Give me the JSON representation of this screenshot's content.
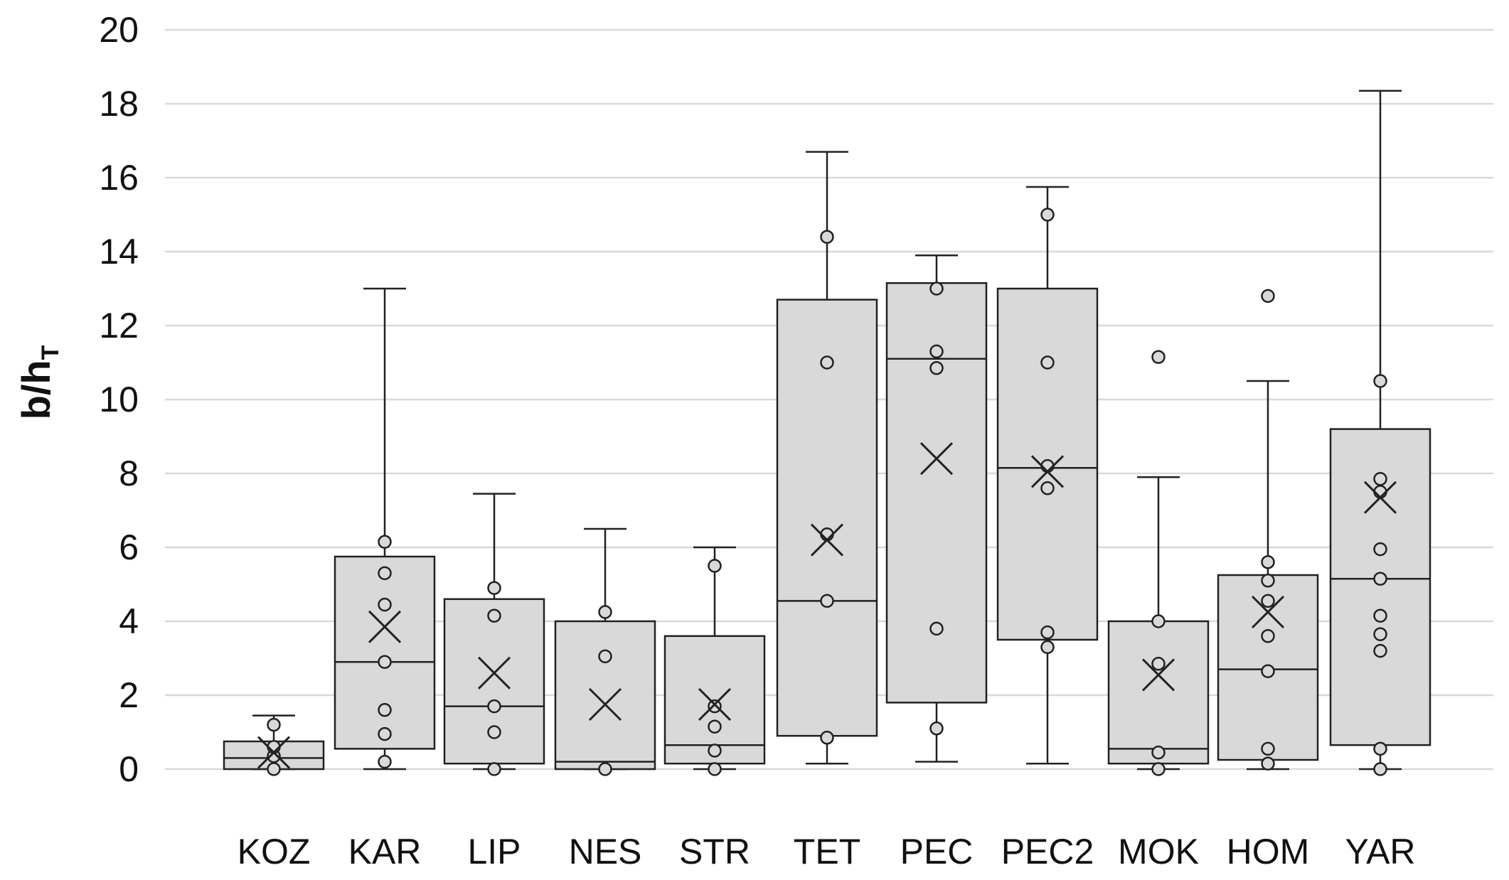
{
  "chart_data": {
    "type": "boxplot",
    "title": "",
    "xlabel": "",
    "ylabel": "b/h",
    "ylabel_subscript": "T",
    "ylim": [
      0,
      20
    ],
    "yticks": [
      0,
      2,
      4,
      6,
      8,
      10,
      12,
      14,
      16,
      18,
      20
    ],
    "grid": true,
    "colors": {
      "box_fill": "#d9d9d9",
      "stroke": "#222222",
      "grid": "#d9d9d9"
    },
    "categories": [
      "KOZ",
      "KAR",
      "LIP",
      "NES",
      "STR",
      "TET",
      "PEC",
      "PEC2",
      "MOK",
      "HOM",
      "YAR"
    ],
    "boxes": [
      {
        "name": "KOZ",
        "min": 0,
        "q1": 0,
        "median": 0.3,
        "q3": 0.75,
        "max": 1.45,
        "mean": 0.45,
        "points": [
          0,
          0.35,
          0.6,
          1.2
        ]
      },
      {
        "name": "KAR",
        "min": 0,
        "q1": 0.55,
        "median": 2.9,
        "q3": 5.75,
        "max": 13.0,
        "mean": 3.85,
        "points": [
          0.2,
          0.95,
          1.6,
          2.9,
          4.45,
          5.3,
          6.15
        ]
      },
      {
        "name": "LIP",
        "min": 0,
        "q1": 0.15,
        "median": 1.7,
        "q3": 4.6,
        "max": 7.45,
        "mean": 2.6,
        "points": [
          0,
          1.0,
          1.7,
          4.15,
          4.9
        ]
      },
      {
        "name": "NES",
        "min": 0,
        "q1": 0,
        "median": 0.2,
        "q3": 4.0,
        "max": 6.5,
        "mean": 1.75,
        "points": [
          0,
          3.05,
          4.25
        ]
      },
      {
        "name": "STR",
        "min": 0,
        "q1": 0.15,
        "median": 0.65,
        "q3": 3.6,
        "max": 6.0,
        "mean": 1.75,
        "points": [
          0,
          0.5,
          1.15,
          1.7,
          5.5
        ]
      },
      {
        "name": "TET",
        "min": 0.15,
        "q1": 0.9,
        "median": 4.55,
        "q3": 12.7,
        "max": 16.7,
        "mean": 6.2,
        "points": [
          0.85,
          4.55,
          6.35,
          11.0,
          14.4
        ]
      },
      {
        "name": "PEC",
        "min": 0.2,
        "q1": 1.8,
        "median": 11.1,
        "q3": 13.15,
        "max": 13.9,
        "mean": 8.4,
        "points": [
          1.1,
          3.8,
          10.85,
          11.3,
          13.0
        ]
      },
      {
        "name": "PEC2",
        "min": 0.15,
        "q1": 3.5,
        "median": 8.15,
        "q3": 13.0,
        "max": 15.75,
        "mean": 8.05,
        "points": [
          3.3,
          3.7,
          7.6,
          8.2,
          11.0,
          15.0
        ]
      },
      {
        "name": "MOK",
        "min": 0,
        "q1": 0.15,
        "median": 0.55,
        "q3": 4.0,
        "max": 7.9,
        "mean": 2.55,
        "points": [
          0,
          0.45,
          2.85,
          4.0,
          11.15
        ]
      },
      {
        "name": "HOM",
        "min": 0,
        "q1": 0.25,
        "median": 2.7,
        "q3": 5.25,
        "max": 10.5,
        "mean": 4.25,
        "points": [
          0.15,
          0.55,
          2.65,
          3.6,
          4.55,
          5.1,
          5.6,
          12.8
        ]
      },
      {
        "name": "YAR",
        "min": 0,
        "q1": 0.65,
        "median": 5.15,
        "q3": 9.2,
        "max": 18.35,
        "mean": 7.35,
        "points": [
          0,
          0.55,
          3.2,
          3.65,
          4.15,
          5.15,
          5.95,
          7.5,
          7.85,
          10.5
        ]
      }
    ]
  }
}
